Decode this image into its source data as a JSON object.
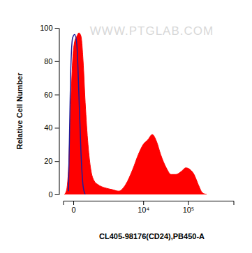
{
  "chart_data": {
    "type": "area",
    "watermark": "WWW.PTGLAB.COM",
    "x_label": "CL405-98176(CD24),PB450-A",
    "y_label": "Relative Cell Number",
    "log": "x",
    "x": [
      -174,
      -127,
      -83,
      -45,
      -11,
      22,
      58,
      97,
      141,
      191,
      246,
      328,
      423,
      563,
      729,
      1164,
      1785,
      2673,
      3930,
      5730,
      7730,
      9990,
      12860,
      15950,
      19780,
      24590,
      32760,
      41990,
      53840,
      71850,
      88620,
      109450,
      135140,
      166900,
      206700,
      255700
    ],
    "series": [
      {
        "type": "area",
        "color": "#ff0000",
        "values": [
          0,
          2,
          15,
          50,
          80,
          92,
          95,
          97,
          95,
          80,
          55,
          30,
          15,
          8,
          6,
          4,
          3,
          2,
          6,
          15,
          24,
          30,
          33,
          36,
          32,
          24,
          16,
          12,
          12,
          14,
          16,
          15,
          12,
          6,
          1,
          0
        ]
      },
      {
        "type": "line",
        "color": "#1c1c9c",
        "values": [
          null,
          null,
          2,
          70,
          94,
          96,
          90,
          60,
          25,
          5,
          0,
          null,
          null,
          null,
          null,
          null,
          null,
          null,
          null,
          null,
          null,
          null,
          null,
          null,
          null,
          null,
          null,
          null,
          null,
          null,
          null,
          null,
          null,
          null,
          null,
          null
        ]
      }
    ],
    "xlim": [
      -200,
      1000000
    ],
    "xticks": [
      {
        "value": 0,
        "label": "0"
      },
      {
        "value": 10000,
        "label": "10⁴"
      },
      {
        "value": 100000,
        "label": "10⁵"
      }
    ],
    "ylim": [
      0,
      100
    ],
    "yticks": [
      0,
      20,
      40,
      60,
      80,
      100
    ]
  }
}
